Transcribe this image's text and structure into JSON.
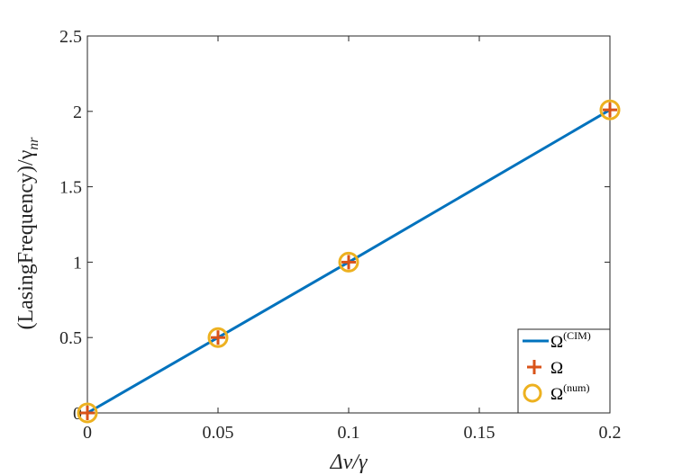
{
  "chart_data": {
    "type": "line",
    "xlabel": "Δν/γ",
    "ylabel": "(LasingFrequency)/γ",
    "ylabel_subscript": "nr",
    "xlim": [
      0,
      0.2
    ],
    "ylim": [
      0,
      2.5
    ],
    "x_ticks": [
      "0",
      "0.05",
      "0.1",
      "0.15",
      "0.2"
    ],
    "x_tick_values": [
      0,
      0.05,
      0.1,
      0.15,
      0.2
    ],
    "y_ticks": [
      "0",
      "0.5",
      "1",
      "1.5",
      "2",
      "2.5"
    ],
    "y_tick_values": [
      0,
      0.5,
      1,
      1.5,
      2,
      2.5
    ],
    "grid": false,
    "legend_position": "bottom-right",
    "series": [
      {
        "name": "Ω",
        "name_sup": "(CIM)",
        "style": "line",
        "color": "#0072BD",
        "x": [
          0,
          0.05,
          0.1,
          0.2
        ],
        "y": [
          0,
          0.5,
          1.0,
          2.01
        ]
      },
      {
        "name": "Ω",
        "name_sup": "",
        "style": "plus-marker",
        "color": "#D95319",
        "x": [
          0,
          0.05,
          0.1,
          0.2
        ],
        "y": [
          0,
          0.5,
          1.0,
          2.01
        ]
      },
      {
        "name": "Ω",
        "name_sup": "(num)",
        "style": "circle-marker",
        "color": "#EDB120",
        "x": [
          0,
          0.05,
          0.1,
          0.2
        ],
        "y": [
          0,
          0.5,
          1.0,
          2.01
        ]
      }
    ]
  }
}
